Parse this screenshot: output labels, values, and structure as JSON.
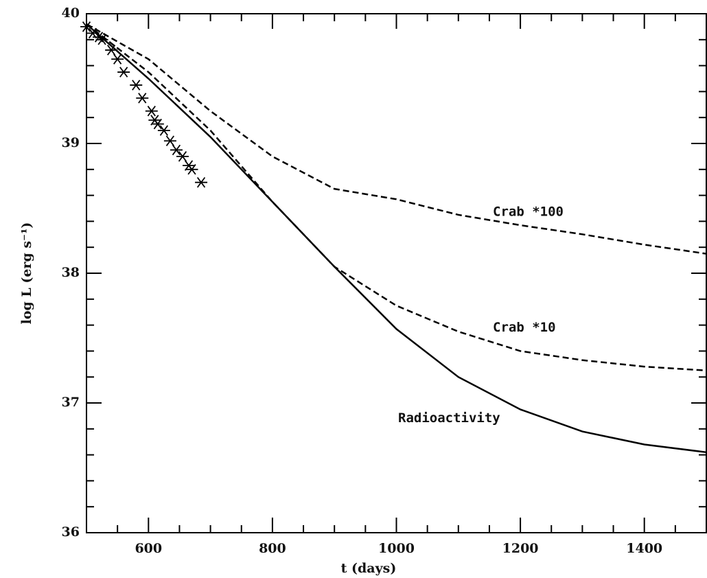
{
  "chart_data": {
    "type": "line",
    "xlabel": "t (days)",
    "ylabel": "log L (erg s⁻¹)",
    "xlim": [
      500,
      1500
    ],
    "ylim": [
      36,
      40
    ],
    "xticks": [
      600,
      800,
      1000,
      1200,
      1400
    ],
    "yticks": [
      36,
      37,
      38,
      39,
      40
    ],
    "xminorticks": [
      550,
      650,
      700,
      750,
      850,
      900,
      950,
      1050,
      1100,
      1150,
      1250,
      1300,
      1350,
      1450
    ],
    "yminorticks": [
      36.2,
      36.4,
      36.6,
      36.8,
      37.2,
      37.4,
      37.6,
      37.8,
      38.2,
      38.4,
      38.6,
      38.8,
      39.2,
      39.4,
      39.6,
      39.8
    ],
    "x": [
      500,
      600,
      700,
      800,
      900,
      1000,
      1100,
      1200,
      1300,
      1400,
      1500
    ],
    "series": [
      {
        "name": "Radioactivity",
        "color": "#000000",
        "dashed": false,
        "values": [
          39.92,
          39.5,
          39.05,
          38.55,
          38.05,
          37.57,
          37.2,
          36.95,
          36.78,
          36.68,
          36.62
        ]
      },
      {
        "name": "Crab *10",
        "color": "#000000",
        "dashed": true,
        "values": [
          39.92,
          39.55,
          39.1,
          38.55,
          38.05,
          37.75,
          37.55,
          37.4,
          37.33,
          37.28,
          37.25
        ]
      },
      {
        "name": "Crab *100",
        "color": "#000000",
        "dashed": true,
        "values": [
          39.92,
          39.65,
          39.25,
          38.9,
          38.65,
          38.57,
          38.45,
          38.37,
          38.3,
          38.22,
          38.15
        ]
      }
    ],
    "observations": {
      "x": [
        500,
        510,
        520,
        525,
        540,
        550,
        560,
        580,
        590,
        605,
        610,
        615,
        625,
        635,
        645,
        655,
        665,
        670,
        685
      ],
      "y": [
        39.9,
        39.85,
        39.82,
        39.8,
        39.72,
        39.65,
        39.55,
        39.45,
        39.35,
        39.25,
        39.18,
        39.15,
        39.1,
        39.02,
        38.95,
        38.9,
        38.83,
        38.8,
        38.7
      ]
    }
  }
}
